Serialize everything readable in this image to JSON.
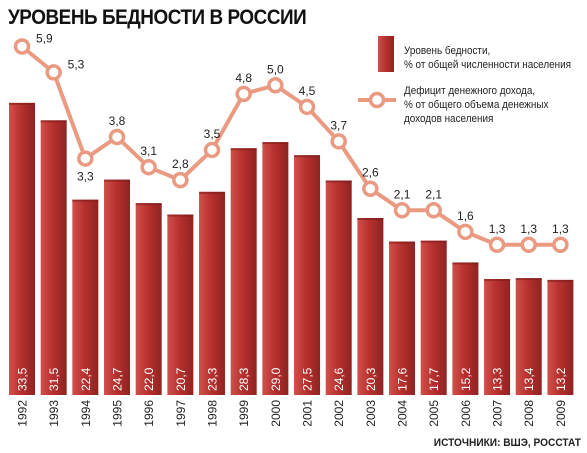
{
  "chart_data": {
    "type": "bar",
    "title": "УРОВЕНЬ БЕДНОСТИ В РОССИИ",
    "categories": [
      "1992",
      "1993",
      "1994",
      "1995",
      "1996",
      "1997",
      "1998",
      "1999",
      "2000",
      "2001",
      "2002",
      "2003",
      "2004",
      "2005",
      "2006",
      "2007",
      "2008",
      "2009"
    ],
    "value_labels": [
      "33,5",
      "31,5",
      "22,4",
      "24,7",
      "22,0",
      "20,7",
      "23,3",
      "28,3",
      "29,0",
      "27,5",
      "24,6",
      "20,3",
      "17,6",
      "17,7",
      "15,2",
      "13,3",
      "13,4",
      "13,2"
    ],
    "line_labels": [
      "5,9",
      "5,3",
      "3,3",
      "3,8",
      "3,1",
      "2,8",
      "3,5",
      "4,8",
      "5,0",
      "4,5",
      "3,7",
      "2,6",
      "2,1",
      "2,1",
      "1,6",
      "1,3",
      "1,3",
      "1,3"
    ],
    "series": [
      {
        "name": "Уровень бедности, % от общей численности населения",
        "type": "bar",
        "values": [
          33.5,
          31.5,
          22.4,
          24.7,
          22.0,
          20.7,
          23.3,
          28.3,
          29.0,
          27.5,
          24.6,
          20.3,
          17.6,
          17.7,
          15.2,
          13.3,
          13.4,
          13.2
        ]
      },
      {
        "name": "Дефицит денежного дохода, % от общего объема денежных доходов населения",
        "type": "line",
        "values": [
          5.9,
          5.3,
          3.3,
          3.8,
          3.1,
          2.8,
          3.5,
          4.8,
          5.0,
          4.5,
          3.7,
          2.6,
          2.1,
          2.1,
          1.6,
          1.3,
          1.3,
          1.3
        ]
      }
    ],
    "legend": {
      "bar_label_lines": [
        "Уровень бедности,",
        "% от общей численности населения"
      ],
      "line_label_lines": [
        "Дефицит денежного дохода,",
        "% от общего объема денежных",
        "доходов населения"
      ],
      "placement": "top-right"
    },
    "colors": {
      "bar": "#b8312f",
      "bar_dark": "#7d1c1a",
      "bar_light": "#d9605a",
      "line": "#eb9a82",
      "text": "#222222"
    }
  },
  "source": "ИСТОЧНИКИ: ВШЭ, РОССТАТ"
}
